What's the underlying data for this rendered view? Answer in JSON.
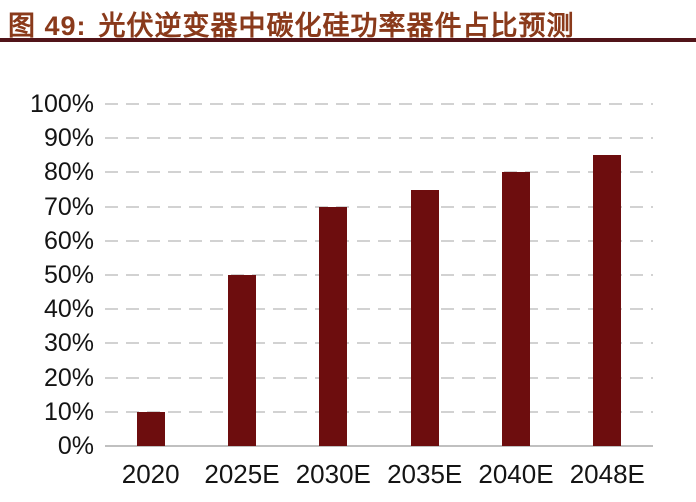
{
  "figure": {
    "label": "图 49:",
    "title": "光伏逆变器中碳化硅功率器件占比预测"
  },
  "colors": {
    "title_text": "#8A3A1B",
    "title_rule": "#511419",
    "bar": "#6D0D0E",
    "gridline": "#D2D2D2",
    "axis_line": "#C0C0C0",
    "tick_text": "#141414",
    "background": "#FFFFFF"
  },
  "chart_data": {
    "type": "bar",
    "title": "光伏逆变器中碳化硅功率器件占比预测",
    "categories": [
      "2020",
      "2025E",
      "2030E",
      "2035E",
      "2040E",
      "2048E"
    ],
    "values": [
      10,
      50,
      70,
      75,
      80,
      85
    ],
    "unit": "%",
    "xlabel": "",
    "ylabel": "",
    "ylim": [
      0,
      100
    ],
    "ytick_step": 10,
    "ytick_labels": [
      "0%",
      "10%",
      "20%",
      "30%",
      "40%",
      "50%",
      "60%",
      "70%",
      "80%",
      "90%",
      "100%"
    ],
    "grid": "horizontal-dashed",
    "legend": "none",
    "bar_color": "#6D0D0E"
  }
}
